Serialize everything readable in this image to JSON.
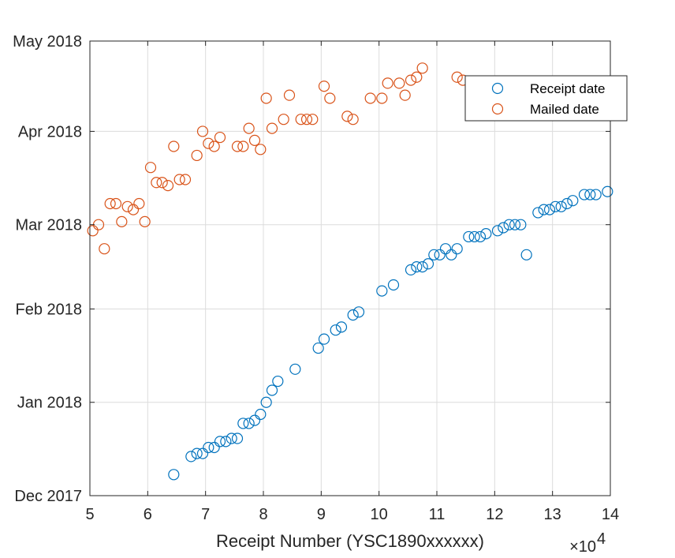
{
  "chart_data": {
    "type": "scatter",
    "xlabel": "Receipt Number (YSC1890xxxxxx)",
    "x_exponent_base": "×10",
    "x_exponent_power": "4",
    "xlim": [
      5,
      14
    ],
    "x_ticks": [
      5,
      6,
      7,
      8,
      9,
      10,
      11,
      12,
      13,
      14
    ],
    "ylim": [
      "2017-12-01",
      "2018-05-01"
    ],
    "y_ticks": [
      {
        "date": "2017-12-01",
        "label": "Dec 2017"
      },
      {
        "date": "2018-01-01",
        "label": "Jan 2018"
      },
      {
        "date": "2018-02-01",
        "label": "Feb 2018"
      },
      {
        "date": "2018-03-01",
        "label": "Mar 2018"
      },
      {
        "date": "2018-04-01",
        "label": "Apr 2018"
      },
      {
        "date": "2018-05-01",
        "label": "May 2018"
      }
    ],
    "grid": true,
    "legend_position": "top-right",
    "series": [
      {
        "name": "Receipt date",
        "color": "#0072BD",
        "marker": "circle-open",
        "points": [
          [
            6.45,
            "2017-12-08"
          ],
          [
            6.75,
            "2017-12-14"
          ],
          [
            6.85,
            "2017-12-15"
          ],
          [
            6.95,
            "2017-12-15"
          ],
          [
            7.05,
            "2017-12-17"
          ],
          [
            7.15,
            "2017-12-17"
          ],
          [
            7.25,
            "2017-12-19"
          ],
          [
            7.35,
            "2017-12-19"
          ],
          [
            7.45,
            "2017-12-20"
          ],
          [
            7.55,
            "2017-12-20"
          ],
          [
            7.65,
            "2017-12-25"
          ],
          [
            7.75,
            "2017-12-25"
          ],
          [
            7.85,
            "2017-12-26"
          ],
          [
            7.95,
            "2017-12-28"
          ],
          [
            8.05,
            "2018-01-01"
          ],
          [
            8.15,
            "2018-01-05"
          ],
          [
            8.25,
            "2018-01-08"
          ],
          [
            8.55,
            "2018-01-12"
          ],
          [
            8.95,
            "2018-01-19"
          ],
          [
            9.05,
            "2018-01-22"
          ],
          [
            9.25,
            "2018-01-25"
          ],
          [
            9.35,
            "2018-01-26"
          ],
          [
            9.55,
            "2018-01-30"
          ],
          [
            9.65,
            "2018-01-31"
          ],
          [
            10.05,
            "2018-02-07"
          ],
          [
            10.25,
            "2018-02-09"
          ],
          [
            10.55,
            "2018-02-14"
          ],
          [
            10.65,
            "2018-02-15"
          ],
          [
            10.75,
            "2018-02-15"
          ],
          [
            10.85,
            "2018-02-16"
          ],
          [
            10.95,
            "2018-02-19"
          ],
          [
            11.05,
            "2018-02-19"
          ],
          [
            11.15,
            "2018-02-21"
          ],
          [
            11.25,
            "2018-02-19"
          ],
          [
            11.35,
            "2018-02-21"
          ],
          [
            11.55,
            "2018-02-25"
          ],
          [
            11.65,
            "2018-02-25"
          ],
          [
            11.75,
            "2018-02-25"
          ],
          [
            11.85,
            "2018-02-26"
          ],
          [
            12.05,
            "2018-02-27"
          ],
          [
            12.15,
            "2018-02-28"
          ],
          [
            12.25,
            "2018-03-01"
          ],
          [
            12.35,
            "2018-03-01"
          ],
          [
            12.45,
            "2018-03-01"
          ],
          [
            12.55,
            "2018-02-19"
          ],
          [
            12.75,
            "2018-03-05"
          ],
          [
            12.85,
            "2018-03-06"
          ],
          [
            12.95,
            "2018-03-06"
          ],
          [
            13.05,
            "2018-03-07"
          ],
          [
            13.15,
            "2018-03-07"
          ],
          [
            13.25,
            "2018-03-08"
          ],
          [
            13.35,
            "2018-03-09"
          ],
          [
            13.55,
            "2018-03-11"
          ],
          [
            13.65,
            "2018-03-11"
          ],
          [
            13.75,
            "2018-03-11"
          ],
          [
            13.95,
            "2018-03-12"
          ]
        ]
      },
      {
        "name": "Mailed date",
        "color": "#D95319",
        "marker": "circle-open",
        "points": [
          [
            5.05,
            "2018-02-27"
          ],
          [
            5.15,
            "2018-03-01"
          ],
          [
            5.25,
            "2018-02-21"
          ],
          [
            5.35,
            "2018-03-08"
          ],
          [
            5.45,
            "2018-03-08"
          ],
          [
            5.55,
            "2018-03-02"
          ],
          [
            5.65,
            "2018-03-07"
          ],
          [
            5.75,
            "2018-03-06"
          ],
          [
            5.85,
            "2018-03-08"
          ],
          [
            5.95,
            "2018-03-02"
          ],
          [
            6.05,
            "2018-03-20"
          ],
          [
            6.15,
            "2018-03-15"
          ],
          [
            6.25,
            "2018-03-15"
          ],
          [
            6.35,
            "2018-03-14"
          ],
          [
            6.45,
            "2018-03-27"
          ],
          [
            6.55,
            "2018-03-16"
          ],
          [
            6.65,
            "2018-03-16"
          ],
          [
            6.85,
            "2018-03-24"
          ],
          [
            6.95,
            "2018-04-01"
          ],
          [
            7.05,
            "2018-03-28"
          ],
          [
            7.15,
            "2018-03-27"
          ],
          [
            7.25,
            "2018-03-30"
          ],
          [
            7.55,
            "2018-03-27"
          ],
          [
            7.65,
            "2018-03-27"
          ],
          [
            7.75,
            "2018-04-02"
          ],
          [
            7.85,
            "2018-03-29"
          ],
          [
            7.95,
            "2018-03-26"
          ],
          [
            8.05,
            "2018-04-12"
          ],
          [
            8.15,
            "2018-04-02"
          ],
          [
            8.35,
            "2018-04-05"
          ],
          [
            8.45,
            "2018-04-13"
          ],
          [
            8.65,
            "2018-04-05"
          ],
          [
            8.75,
            "2018-04-05"
          ],
          [
            8.85,
            "2018-04-05"
          ],
          [
            9.05,
            "2018-04-16"
          ],
          [
            9.15,
            "2018-04-12"
          ],
          [
            9.45,
            "2018-04-06"
          ],
          [
            9.55,
            "2018-04-05"
          ],
          [
            9.85,
            "2018-04-12"
          ],
          [
            10.05,
            "2018-04-12"
          ],
          [
            10.15,
            "2018-04-17"
          ],
          [
            10.35,
            "2018-04-17"
          ],
          [
            10.45,
            "2018-04-13"
          ],
          [
            10.55,
            "2018-04-18"
          ],
          [
            10.65,
            "2018-04-19"
          ],
          [
            10.75,
            "2018-04-22"
          ],
          [
            11.35,
            "2018-04-19"
          ],
          [
            11.45,
            "2018-04-18"
          ]
        ]
      }
    ]
  },
  "legend": {
    "entries": [
      "Receipt date",
      "Mailed date"
    ]
  }
}
